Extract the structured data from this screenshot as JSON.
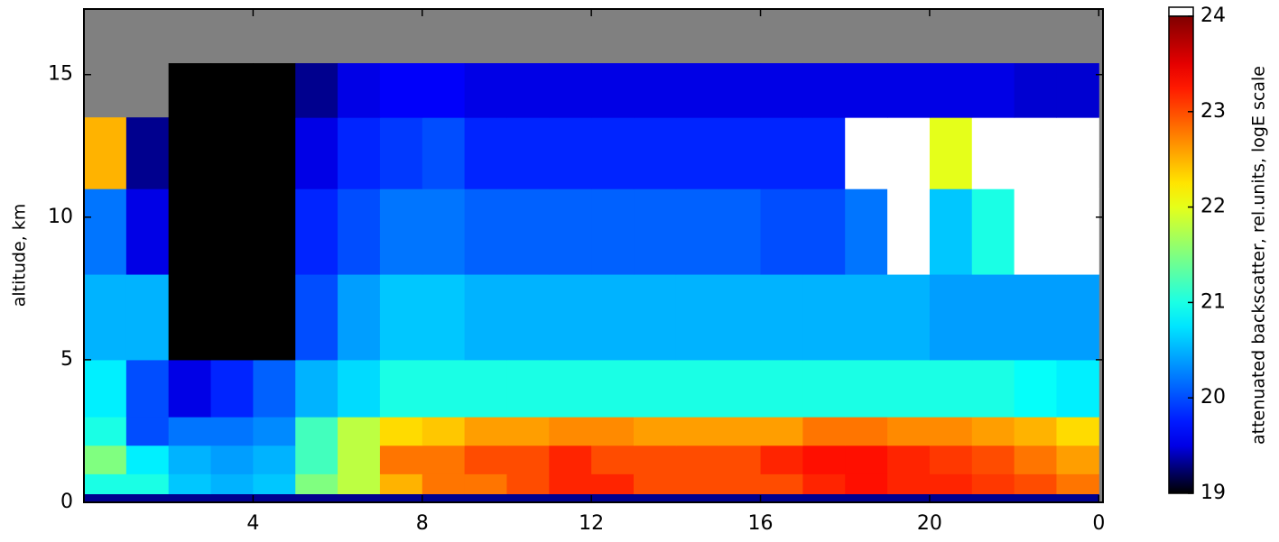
{
  "chart_data": {
    "type": "heatmap",
    "ylabel": "altitude, km",
    "colorbar_label": "attenuated backscatter, rel.units, logE scale",
    "xlim": [
      0,
      24.1
    ],
    "ylim": [
      0,
      17.3
    ],
    "xticks": [
      4,
      8,
      12,
      16,
      20,
      {
        "value": 24,
        "label": "0"
      }
    ],
    "yticks": [
      0,
      5,
      10,
      15
    ],
    "clim": [
      19,
      24
    ],
    "cticks": [
      19,
      20,
      21,
      22,
      23,
      24
    ],
    "colormap": "jet",
    "over_color": "#ffffff",
    "missing_color": "#808080",
    "x_bins": [
      0,
      1,
      2,
      3,
      4,
      5,
      6,
      7,
      8,
      9,
      10,
      11,
      12,
      13,
      14,
      15,
      16,
      17,
      18,
      19,
      20,
      21,
      22,
      23,
      24
    ],
    "y_bins": [
      0,
      0.3,
      1,
      2,
      3,
      5,
      8,
      11,
      13.5,
      15.4,
      17.3
    ],
    "z": [
      [
        19.3,
        19.3,
        19.3,
        19.3,
        19.3,
        19.3,
        19.3,
        19.3,
        19.3,
        19.3,
        19.3,
        19.3,
        19.3,
        19.3,
        19.3,
        19.3,
        19.3,
        19.3,
        19.3,
        19.3,
        19.3,
        19.3,
        19.3,
        19.3
      ],
      [
        21,
        21,
        20.6,
        20.5,
        20.6,
        21.5,
        21.8,
        22.5,
        22.8,
        22.8,
        23,
        23.2,
        23.2,
        23,
        23,
        23,
        23,
        23.2,
        23.3,
        23.2,
        23.2,
        23.1,
        23,
        22.8
      ],
      [
        21.5,
        20.8,
        20.5,
        20.4,
        20.5,
        21.2,
        21.8,
        22.8,
        22.8,
        23,
        23,
        23.2,
        23,
        23,
        23,
        23,
        23.2,
        23.3,
        23.3,
        23.2,
        23.1,
        23,
        22.8,
        22.6
      ],
      [
        21,
        20,
        20.2,
        20.2,
        20.3,
        21.2,
        21.8,
        22.3,
        22.4,
        22.6,
        22.6,
        22.7,
        22.7,
        22.6,
        22.6,
        22.6,
        22.6,
        22.8,
        22.8,
        22.7,
        22.7,
        22.6,
        22.5,
        22.3
      ],
      [
        20.8,
        20,
        19.5,
        19.8,
        20.1,
        20.5,
        20.7,
        21,
        21,
        21,
        21,
        21,
        21,
        21,
        21,
        21,
        21,
        21,
        21,
        21,
        21,
        21,
        20.9,
        20.8
      ],
      [
        20.5,
        20.5,
        19,
        19,
        19,
        20,
        20.4,
        20.6,
        20.6,
        20.5,
        20.5,
        20.5,
        20.5,
        20.5,
        20.5,
        20.5,
        20.5,
        20.5,
        20.5,
        20.5,
        20.4,
        20.4,
        20.4,
        20.4
      ],
      [
        20.2,
        19.5,
        19,
        19,
        19,
        19.8,
        20,
        20.2,
        20.2,
        20.1,
        20.1,
        20.1,
        20.1,
        20.1,
        20.1,
        20.1,
        20,
        20,
        20.2,
        24.5,
        20.6,
        21,
        24.5,
        24.5
      ],
      [
        22.5,
        19.3,
        19,
        19,
        19,
        19.5,
        19.8,
        19.9,
        20,
        19.8,
        19.8,
        19.8,
        19.8,
        19.8,
        19.8,
        19.8,
        19.8,
        19.8,
        24.5,
        24.5,
        22,
        24.5,
        24.5,
        24.5
      ],
      [
        null,
        null,
        19,
        19,
        19,
        19.3,
        19.5,
        19.6,
        19.6,
        19.5,
        19.5,
        19.5,
        19.5,
        19.5,
        19.5,
        19.5,
        19.5,
        19.5,
        19.5,
        19.5,
        19.5,
        19.5,
        19.4,
        19.4
      ],
      [
        null,
        null,
        null,
        null,
        null,
        null,
        null,
        null,
        null,
        null,
        null,
        null,
        null,
        null,
        null,
        null,
        null,
        null,
        null,
        null,
        null,
        null,
        null,
        null
      ]
    ]
  }
}
